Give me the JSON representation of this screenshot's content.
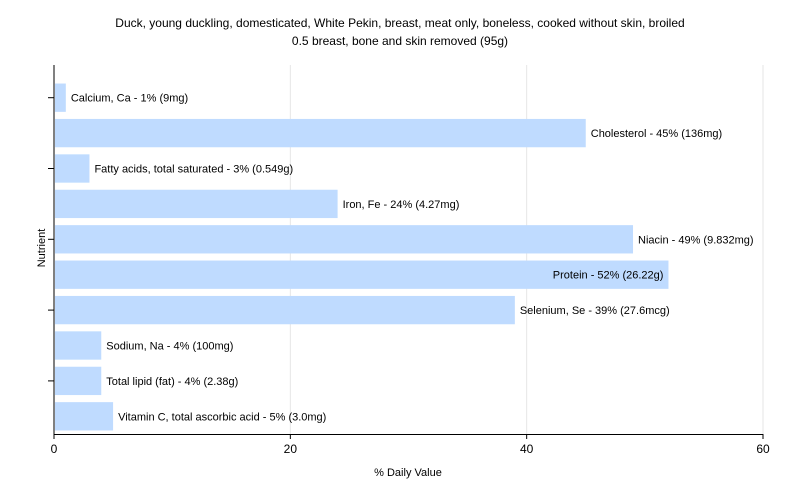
{
  "chart_data": {
    "type": "bar",
    "orientation": "horizontal",
    "title": "Duck, young duckling, domesticated, White Pekin, breast, meat only, boneless, cooked without skin, broiled",
    "subtitle": "0.5 breast, bone and skin removed (95g)",
    "xlabel": "% Daily Value",
    "ylabel": "Nutrient",
    "xlim": [
      0,
      60
    ],
    "xticks": [
      0,
      20,
      40,
      60
    ],
    "grid": true,
    "bar_color": "#bfdbff",
    "categories": [
      "Calcium, Ca",
      "Cholesterol",
      "Fatty acids, total saturated",
      "Iron, Fe",
      "Niacin",
      "Protein",
      "Selenium, Se",
      "Sodium, Na",
      "Total lipid (fat)",
      "Vitamin C, total ascorbic acid"
    ],
    "values": [
      1,
      45,
      3,
      24,
      49,
      52,
      39,
      4,
      4,
      5
    ],
    "labels": [
      "Calcium, Ca - 1% (9mg)",
      "Cholesterol - 45% (136mg)",
      "Fatty acids, total saturated - 3% (0.549g)",
      "Iron, Fe - 24% (4.27mg)",
      "Niacin - 49% (9.832mg)",
      "Protein - 52% (26.22g)",
      "Selenium, Se - 39% (27.6mcg)",
      "Sodium, Na - 4% (100mg)",
      "Total lipid (fat) - 4% (2.38g)",
      "Vitamin C, total ascorbic acid - 5% (3.0mg)"
    ]
  }
}
